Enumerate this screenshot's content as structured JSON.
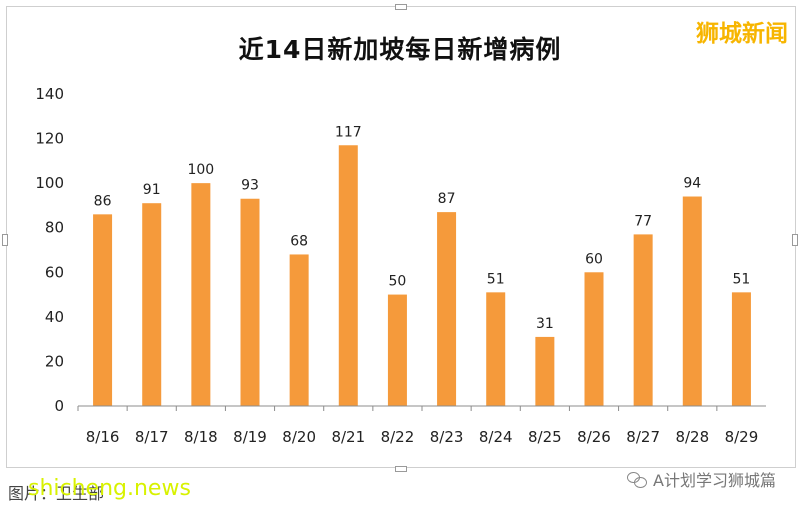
{
  "title": "近14日新加坡每日新增病例",
  "brand": "狮城新闻",
  "footer": {
    "source_text": "图片：卫生部",
    "site_watermark": "shicheng.news",
    "wechat_label": "A计划学习狮城篇",
    "wechat_icon": "wechat-icon"
  },
  "colors": {
    "bar": "#f59a3b",
    "brand": "#f7b500",
    "axis": "#8c8c8c"
  },
  "chart_data": {
    "type": "bar",
    "title": "近14日新加坡每日新增病例",
    "categories": [
      "8/16",
      "8/17",
      "8/18",
      "8/19",
      "8/20",
      "8/21",
      "8/22",
      "8/23",
      "8/24",
      "8/25",
      "8/26",
      "8/27",
      "8/28",
      "8/29"
    ],
    "values": [
      86,
      91,
      100,
      93,
      68,
      117,
      50,
      87,
      51,
      31,
      60,
      77,
      94,
      51
    ],
    "yticks": [
      0,
      20,
      40,
      60,
      80,
      100,
      120,
      140
    ],
    "ylim": [
      0,
      140
    ],
    "xlabel": "",
    "ylabel": "",
    "grid": false,
    "legend": "none",
    "data_labels": true
  }
}
